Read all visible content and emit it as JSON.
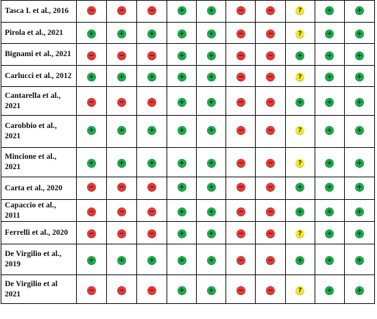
{
  "colors": {
    "low": "#1eaa52",
    "high": "#e23a3a",
    "unclear": "#f2e92c"
  },
  "symbols": {
    "low": "+",
    "high": "−",
    "unclear": "?"
  },
  "rows": [
    {
      "study": "Tasca I. et al., 2016",
      "ratings": [
        "high",
        "high",
        "high",
        "low",
        "low",
        "high",
        "high",
        "unclear",
        "low",
        "low"
      ]
    },
    {
      "study": "Pirola et al., 2021",
      "ratings": [
        "low",
        "low",
        "low",
        "low",
        "low",
        "high",
        "high",
        "unclear",
        "low",
        "low"
      ]
    },
    {
      "study": "Bignami et al., 2021",
      "ratings": [
        "high",
        "high",
        "high",
        "low",
        "low",
        "high",
        "high",
        "low",
        "low",
        "low"
      ]
    },
    {
      "study": "Carlucci et al., 2012",
      "ratings": [
        "low",
        "low",
        "low",
        "low",
        "low",
        "high",
        "high",
        "unclear",
        "low",
        "low"
      ]
    },
    {
      "study": "Cantarella et al., 2021",
      "ratings": [
        "high",
        "high",
        "high",
        "low",
        "low",
        "high",
        "high",
        "low",
        "low",
        "low"
      ]
    },
    {
      "study": "Carobbio et al., 2021",
      "ratings": [
        "low",
        "low",
        "low",
        "low",
        "low",
        "high",
        "high",
        "unclear",
        "low",
        "low"
      ]
    },
    {
      "study": "Mincione et al., 2021",
      "ratings": [
        "low",
        "low",
        "low",
        "low",
        "low",
        "high",
        "high",
        "unclear",
        "low",
        "low"
      ]
    },
    {
      "study": "Carta et al., 2020",
      "ratings": [
        "high",
        "high",
        "high",
        "low",
        "low",
        "high",
        "high",
        "low",
        "low",
        "low"
      ]
    },
    {
      "study": "Capaccio et al., 2011",
      "ratings": [
        "high",
        "high",
        "high",
        "low",
        "low",
        "high",
        "high",
        "low",
        "low",
        "low"
      ]
    },
    {
      "study": "Ferrelli et al., 2020",
      "ratings": [
        "high",
        "high",
        "high",
        "low",
        "low",
        "high",
        "high",
        "unclear",
        "low",
        "low"
      ]
    },
    {
      "study": "De Virgilio et al., 2019",
      "ratings": [
        "low",
        "low",
        "low",
        "low",
        "low",
        "high",
        "high",
        "low",
        "low",
        "low"
      ]
    },
    {
      "study": "De Virgilio et al 2021",
      "ratings": [
        "high",
        "high",
        "high",
        "low",
        "low",
        "high",
        "high",
        "unclear",
        "low",
        "low"
      ]
    }
  ]
}
